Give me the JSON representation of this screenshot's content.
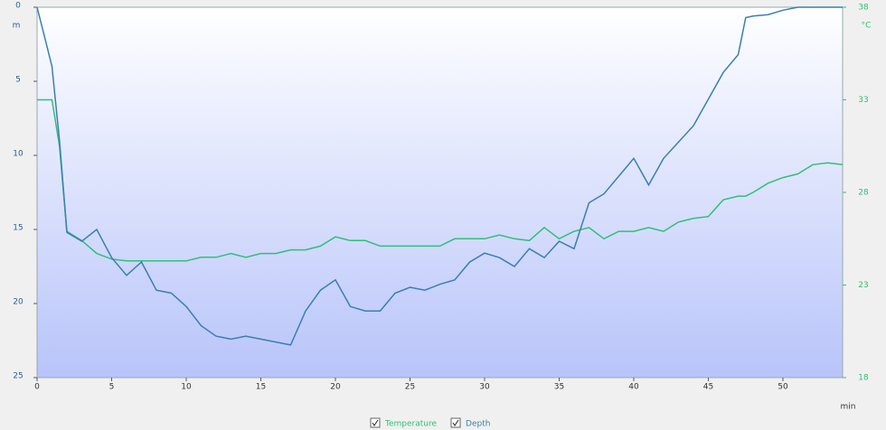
{
  "chart_data": {
    "type": "line",
    "x": [
      0,
      0.5,
      1,
      1.5,
      2,
      3,
      4,
      5,
      6,
      7,
      8,
      9,
      10,
      11,
      12,
      13,
      14,
      15,
      16,
      17,
      18,
      19,
      20,
      21,
      22,
      23,
      24,
      25,
      26,
      27,
      28,
      29,
      30,
      31,
      32,
      33,
      34,
      35,
      36,
      37,
      38,
      39,
      40,
      41,
      42,
      43,
      44,
      45,
      46,
      47,
      47.5,
      48,
      49,
      50,
      51,
      52,
      53,
      54
    ],
    "series": [
      {
        "name": "Temperature",
        "color": "#2fbf7a",
        "axis": "y2",
        "values": [
          33,
          33,
          33,
          30.5,
          25.9,
          25.4,
          24.7,
          24.4,
          24.3,
          24.3,
          24.3,
          24.3,
          24.3,
          24.5,
          24.5,
          24.7,
          24.5,
          24.7,
          24.7,
          24.9,
          24.9,
          25.1,
          25.6,
          25.4,
          25.4,
          25.1,
          25.1,
          25.1,
          25.1,
          25.1,
          25.5,
          25.5,
          25.5,
          25.7,
          25.5,
          25.4,
          26.1,
          25.5,
          25.9,
          26.1,
          25.5,
          25.9,
          25.9,
          26.1,
          25.9,
          26.4,
          26.6,
          26.7,
          27.6,
          27.8,
          27.8,
          28,
          28.5,
          28.8,
          29,
          29.5,
          29.6,
          29.5
        ]
      },
      {
        "name": "Depth",
        "color": "#3a7fb0",
        "axis": "y",
        "values": [
          0,
          2,
          4,
          9,
          15.2,
          15.8,
          15,
          16.9,
          18.1,
          17.2,
          19.1,
          19.3,
          20.2,
          21.5,
          22.2,
          22.4,
          22.2,
          22.4,
          22.6,
          22.8,
          20.5,
          19.1,
          18.4,
          20.2,
          20.5,
          20.5,
          19.3,
          18.9,
          19.1,
          18.7,
          18.4,
          17.2,
          16.6,
          16.9,
          17.5,
          16.3,
          16.9,
          15.8,
          16.3,
          13.2,
          12.6,
          11.4,
          10.2,
          12,
          10.2,
          9.1,
          8,
          6.2,
          4.4,
          3.2,
          0.7,
          0.6,
          0.5,
          0.2,
          0,
          0,
          0,
          0
        ]
      }
    ],
    "xlim": [
      0,
      54
    ],
    "xticks": [
      0,
      5,
      10,
      15,
      20,
      25,
      30,
      35,
      40,
      45,
      50
    ],
    "x_unit": "min",
    "ylim": [
      0,
      25
    ],
    "yticks": [
      0,
      5,
      10,
      15,
      20,
      25
    ],
    "y_reversed": true,
    "y_unit": "m",
    "y2lim": [
      18,
      38
    ],
    "y2ticks": [
      18,
      23,
      28,
      33,
      38
    ],
    "y2_unit": "°C"
  }
}
